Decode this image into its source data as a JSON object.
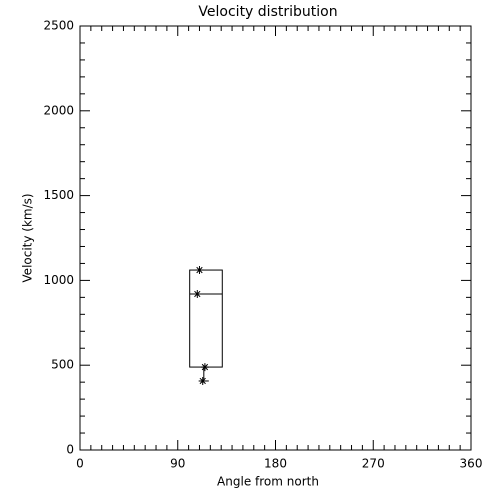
{
  "chart_data": {
    "type": "box",
    "title": "Velocity distribution",
    "xlabel": "Angle from north",
    "ylabel": "Velocity (km/s)",
    "xlim": [
      0,
      360
    ],
    "xticks": [
      0,
      90,
      180,
      270,
      360
    ],
    "x_minor_per_major": 9,
    "ylim": [
      0,
      2500
    ],
    "yticks": [
      0,
      500,
      1000,
      1500,
      2000,
      2500
    ],
    "y_minor_per_major": 5,
    "boxes": [
      {
        "x_range": [
          101,
          131
        ],
        "q1": 489,
        "median": 920,
        "q3": 1061,
        "whisker_x": 114,
        "min": 407
      }
    ],
    "points": {
      "x": [
        110,
        108,
        115,
        113
      ],
      "values": [
        1061,
        920,
        489,
        407
      ]
    },
    "color": "#000000"
  }
}
